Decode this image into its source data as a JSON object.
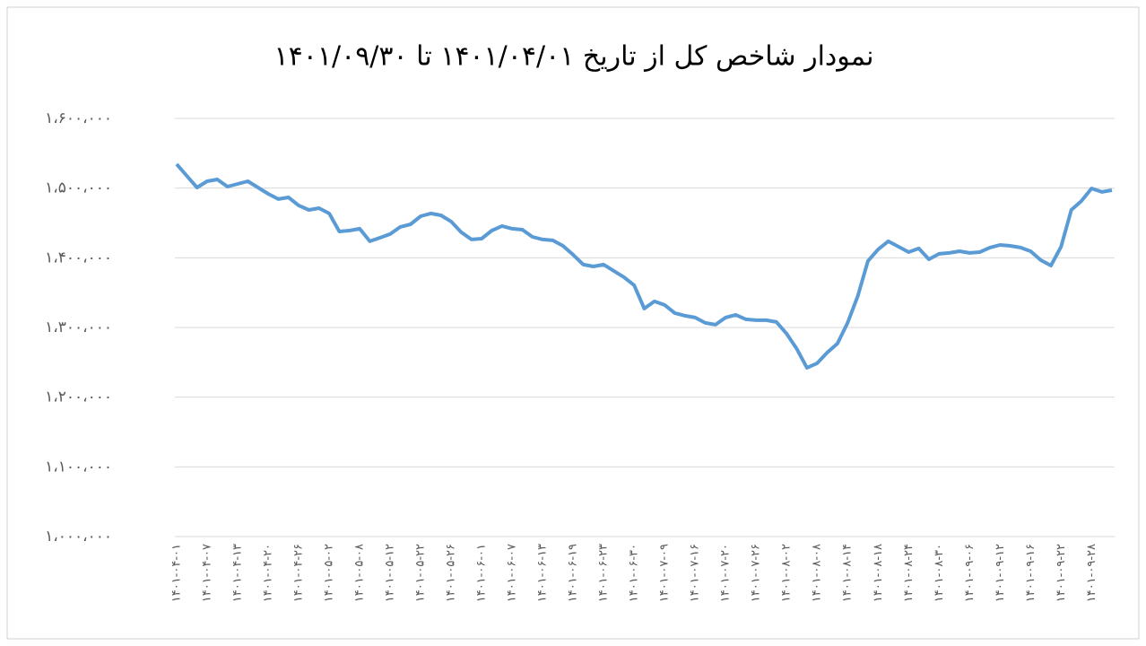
{
  "chart_data": {
    "type": "line",
    "title": "نمودار شاخص کل از تاریخ ۱۴۰۱/۰۴/۰۱ تا ۱۴۰۱/۰۹/۳۰",
    "categories": [
      "۱۴۰۱-۰۴-۰۱",
      null,
      null,
      "۱۴۰۱-۰۴-۰۷",
      null,
      null,
      "۱۴۰۱-۰۴-۱۳",
      null,
      null,
      "۱۴۰۱-۰۴-۲۰",
      null,
      null,
      "۱۴۰۱-۰۴-۲۶",
      null,
      null,
      "۱۴۰۱-۰۵-۰۲",
      null,
      null,
      "۱۴۰۱-۰۵-۰۸",
      null,
      null,
      "۱۴۰۱-۰۵-۱۲",
      null,
      null,
      "۱۴۰۱-۰۵-۲۲",
      null,
      null,
      "۱۴۰۱-۰۵-۲۶",
      null,
      null,
      "۱۴۰۱-۰۶-۰۱",
      null,
      null,
      "۱۴۰۱-۰۶-۰۷",
      null,
      null,
      "۱۴۰۱-۰۶-۱۳",
      null,
      null,
      "۱۴۰۱-۰۶-۱۹",
      null,
      null,
      "۱۴۰۱-۰۶-۲۳",
      null,
      null,
      "۱۴۰۱-۰۶-۳۰",
      null,
      null,
      "۱۴۰۱-۰۷-۰۹",
      null,
      null,
      "۱۴۰۱-۰۷-۱۶",
      null,
      null,
      "۱۴۰۱-۰۷-۲۰",
      null,
      null,
      "۱۴۰۱-۰۷-۲۶",
      null,
      null,
      "۱۴۰۱-۰۸-۰۲",
      null,
      null,
      "۱۴۰۱-۰۸-۰۸",
      null,
      null,
      "۱۴۰۱-۰۸-۱۴",
      null,
      null,
      "۱۴۰۱-۰۸-۱۸",
      null,
      null,
      "۱۴۰۱-۰۸-۲۴",
      null,
      null,
      "۱۴۰۱-۰۸-۳۰",
      null,
      null,
      "۱۴۰۱-۰۹-۰۶",
      null,
      null,
      "۱۴۰۱-۰۹-۱۲",
      null,
      null,
      "۱۴۰۱-۰۹-۱۶",
      null,
      null,
      "۱۴۰۱-۰۹-۲۲",
      null,
      null,
      "۱۴۰۱-۰۹-۲۸",
      null,
      null
    ],
    "values": [
      1534400,
      1517600,
      1500900,
      1509900,
      1512500,
      1502200,
      1506000,
      1509900,
      1500900,
      1491900,
      1484200,
      1486700,
      1475200,
      1468700,
      1471300,
      1463600,
      1437800,
      1439100,
      1441700,
      1423700,
      1428800,
      1434000,
      1444300,
      1448100,
      1459700,
      1463600,
      1461000,
      1452000,
      1436600,
      1426300,
      1427500,
      1439100,
      1445600,
      1441700,
      1440400,
      1430100,
      1426300,
      1425000,
      1417200,
      1404400,
      1390200,
      1387600,
      1390200,
      1381200,
      1372200,
      1360600,
      1327200,
      1337500,
      1332300,
      1320700,
      1316900,
      1314300,
      1306600,
      1304000,
      1314300,
      1318100,
      1311700,
      1310400,
      1310400,
      1307900,
      1291100,
      1269200,
      1242200,
      1248600,
      1264100,
      1277000,
      1306600,
      1345200,
      1395400,
      1412100,
      1423700,
      1416000,
      1408200,
      1413400,
      1397900,
      1405700,
      1407000,
      1409500,
      1407000,
      1408200,
      1414700,
      1418500,
      1417200,
      1414700,
      1409500,
      1396700,
      1388900,
      1416000,
      1468700,
      1481600,
      1499600,
      1494500,
      1497000
    ],
    "color": "#5b9bd5",
    "ylim": [
      1000000,
      1600000
    ],
    "yticks": [
      {
        "value": 1000000,
        "label": "۱،۰۰۰،۰۰۰"
      },
      {
        "value": 1100000,
        "label": "۱،۱۰۰،۰۰۰"
      },
      {
        "value": 1200000,
        "label": "۱،۲۰۰،۰۰۰"
      },
      {
        "value": 1300000,
        "label": "۱،۳۰۰،۰۰۰"
      },
      {
        "value": 1400000,
        "label": "۱،۴۰۰،۰۰۰"
      },
      {
        "value": 1500000,
        "label": "۱،۵۰۰،۰۰۰"
      },
      {
        "value": 1600000,
        "label": "۱،۶۰۰،۰۰۰"
      }
    ],
    "grid": true
  }
}
